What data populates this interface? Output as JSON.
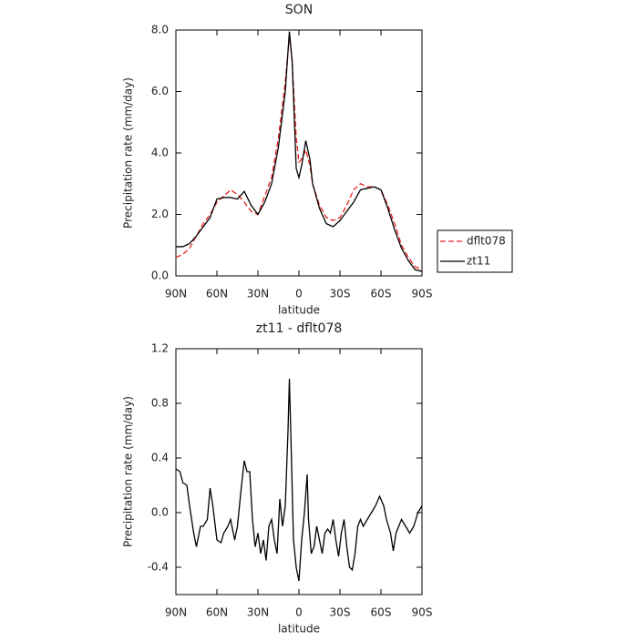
{
  "chart_data": [
    {
      "type": "line",
      "title": "SON",
      "xlabel": "latitude",
      "ylabel": "Precipitation rate (mm/day)",
      "x": [
        90,
        85,
        80,
        75,
        70,
        65,
        60,
        55,
        50,
        45,
        40,
        35,
        30,
        25,
        20,
        15,
        10,
        7,
        5,
        2,
        0,
        -2,
        -5,
        -8,
        -10,
        -15,
        -20,
        -25,
        -30,
        -35,
        -40,
        -45,
        -50,
        -55,
        -60,
        -65,
        -70,
        -75,
        -80,
        -85,
        -90
      ],
      "series": [
        {
          "name": "dflt078",
          "color": "#e8231e",
          "linestyle": "dashed",
          "values": [
            0.6,
            0.7,
            0.9,
            1.3,
            1.7,
            2.0,
            2.4,
            2.6,
            2.8,
            2.65,
            2.4,
            2.1,
            2.0,
            2.6,
            3.2,
            4.5,
            6.3,
            7.8,
            7.0,
            4.5,
            3.7,
            3.8,
            4.1,
            3.6,
            3.0,
            2.3,
            1.9,
            1.8,
            1.9,
            2.3,
            2.8,
            3.0,
            2.9,
            2.9,
            2.8,
            2.3,
            1.7,
            1.0,
            0.6,
            0.3,
            0.2
          ]
        },
        {
          "name": "zt11",
          "color": "#000000",
          "linestyle": "solid",
          "values": [
            0.95,
            0.95,
            1.05,
            1.3,
            1.6,
            1.9,
            2.5,
            2.55,
            2.55,
            2.5,
            2.75,
            2.3,
            2.0,
            2.4,
            3.0,
            4.2,
            6.0,
            7.95,
            7.0,
            3.5,
            3.2,
            3.6,
            4.4,
            3.8,
            3.0,
            2.2,
            1.7,
            1.6,
            1.8,
            2.1,
            2.4,
            2.8,
            2.85,
            2.9,
            2.8,
            2.2,
            1.5,
            0.9,
            0.5,
            0.2,
            0.15
          ]
        }
      ],
      "xlim": [
        90,
        -90
      ],
      "xticks": [
        {
          "value": 90,
          "label": "90N"
        },
        {
          "value": 60,
          "label": "60N"
        },
        {
          "value": 30,
          "label": "30N"
        },
        0,
        {
          "value": -30,
          "label": "30S"
        },
        {
          "value": -60,
          "label": "60S"
        },
        {
          "value": -90,
          "label": "90S"
        }
      ],
      "ylim": [
        0,
        8
      ],
      "yticks": [
        {
          "value": 0,
          "label": "0.0"
        },
        {
          "value": 2,
          "label": "2.0"
        },
        {
          "value": 4,
          "label": "4.0"
        },
        {
          "value": 6,
          "label": "6.0"
        },
        {
          "value": 8,
          "label": "8.0"
        }
      ],
      "legend": "right"
    },
    {
      "type": "line",
      "title": "zt11 - dflt078",
      "xlabel": "latitude",
      "ylabel": "Precipitation rate (mm/day)",
      "color": "#000000",
      "x": [
        90,
        87,
        85,
        82,
        80,
        77,
        75,
        72,
        70,
        67,
        65,
        63,
        60,
        57,
        55,
        52,
        50,
        47,
        45,
        42,
        40,
        38,
        36,
        34,
        32,
        30,
        28,
        26,
        24,
        22,
        20,
        18,
        16,
        14,
        12,
        10,
        8,
        7,
        6,
        4,
        2,
        0,
        -2,
        -4,
        -6,
        -7,
        -9,
        -11,
        -13,
        -15,
        -17,
        -19,
        -21,
        -23,
        -25,
        -27,
        -29,
        -31,
        -33,
        -35,
        -37,
        -39,
        -41,
        -43,
        -45,
        -47,
        -50,
        -53,
        -56,
        -59,
        -62,
        -64,
        -67,
        -69,
        -71,
        -73,
        -75,
        -78,
        -81,
        -84,
        -87,
        -90
      ],
      "values": [
        0.32,
        0.3,
        0.22,
        0.2,
        0.05,
        -0.15,
        -0.25,
        -0.1,
        -0.1,
        -0.05,
        0.18,
        0.05,
        -0.2,
        -0.22,
        -0.15,
        -0.1,
        -0.05,
        -0.2,
        -0.1,
        0.2,
        0.38,
        0.3,
        0.3,
        -0.05,
        -0.25,
        -0.15,
        -0.3,
        -0.2,
        -0.35,
        -0.1,
        -0.05,
        -0.2,
        -0.3,
        0.1,
        -0.1,
        0.05,
        0.6,
        0.98,
        0.6,
        -0.2,
        -0.4,
        -0.5,
        -0.2,
        0.0,
        0.28,
        -0.05,
        -0.3,
        -0.25,
        -0.1,
        -0.2,
        -0.3,
        -0.15,
        -0.12,
        -0.15,
        -0.05,
        -0.2,
        -0.32,
        -0.15,
        -0.05,
        -0.25,
        -0.4,
        -0.42,
        -0.3,
        -0.1,
        -0.05,
        -0.1,
        -0.05,
        0.0,
        0.05,
        0.12,
        0.05,
        -0.05,
        -0.15,
        -0.28,
        -0.15,
        -0.1,
        -0.05,
        -0.1,
        -0.15,
        -0.1,
        0.0,
        0.05
      ],
      "xlim": [
        90,
        -90
      ],
      "xticks": [
        {
          "value": 90,
          "label": "90N"
        },
        {
          "value": 60,
          "label": "60N"
        },
        {
          "value": 30,
          "label": "30N"
        },
        0,
        {
          "value": -30,
          "label": "30S"
        },
        {
          "value": -60,
          "label": "60S"
        },
        {
          "value": -90,
          "label": "90S"
        }
      ],
      "ylim": [
        -0.6,
        1.2
      ],
      "yticks": [
        1.2,
        0.8,
        0.4,
        {
          "value": 0,
          "label": "0.0"
        },
        -0.4
      ]
    }
  ]
}
